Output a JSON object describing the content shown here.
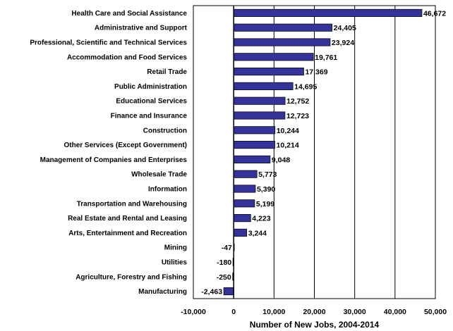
{
  "chart_data": {
    "type": "bar",
    "orientation": "horizontal",
    "xlabel": "Number of New Jobs, 2004-2014",
    "ylabel": "",
    "xlim": [
      -10000,
      50000
    ],
    "xticks": [
      -10000,
      0,
      10000,
      20000,
      30000,
      40000,
      50000
    ],
    "xtick_labels": [
      "-10,000",
      "0",
      "10,000",
      "20,000",
      "30,000",
      "40,000",
      "50,000"
    ],
    "grid": "vertical",
    "bar_color": "#333399",
    "categories": [
      "Health Care and Social Assistance",
      "Administrative and Support",
      "Professional, Scientific and Technical Services",
      "Accommodation and Food Services",
      "Retail Trade",
      "Public Administration",
      "Educational Services",
      "Finance and Insurance",
      "Construction",
      "Other Services (Except Government)",
      "Management of Companies and Enterprises",
      "Wholesale Trade",
      "Information",
      "Transportation and Warehousing",
      "Real Estate and Rental and Leasing",
      "Arts, Entertainment and Recreation",
      "Mining",
      "Utilities",
      "Agriculture, Forestry and Fishing",
      "Manufacturing"
    ],
    "values": [
      46672,
      24405,
      23924,
      19761,
      17369,
      14695,
      12752,
      12723,
      10244,
      10214,
      9048,
      5773,
      5390,
      5199,
      4223,
      3244,
      -47,
      -180,
      -250,
      -2463
    ],
    "value_labels": [
      "46,672",
      "24,405",
      "23,924",
      "19,761",
      "17,369",
      "14,695",
      "12,752",
      "12,723",
      "10,244",
      "10,214",
      "9,048",
      "5,773",
      "5,390",
      "5,199",
      "4,223",
      "3,244",
      "-47",
      "-180",
      "-250",
      "-2,463"
    ]
  }
}
